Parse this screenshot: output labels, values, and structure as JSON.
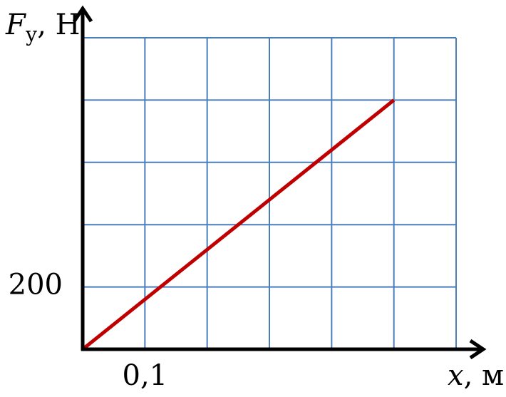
{
  "chart_data": {
    "type": "line",
    "y_label": "F",
    "y_label_sub": "у",
    "y_label_unit": ", Н",
    "x_label": "x",
    "x_label_unit": ", м",
    "x": [
      0,
      0.5
    ],
    "series": [
      {
        "color": "#c00000",
        "values": [
          0,
          800
        ]
      }
    ],
    "xlim": [
      0,
      0.6
    ],
    "ylim": [
      0,
      1000
    ],
    "xticks": [
      {
        "value": 0.1,
        "label": "0,1"
      }
    ],
    "yticks": [
      200
    ],
    "xgrid": [
      0.1,
      0.2,
      0.3,
      0.4,
      0.5,
      0.6
    ],
    "ygrid": [
      200,
      400,
      600,
      800,
      1000
    ],
    "grid": true,
    "grid_color": "#4a7ebb"
  }
}
